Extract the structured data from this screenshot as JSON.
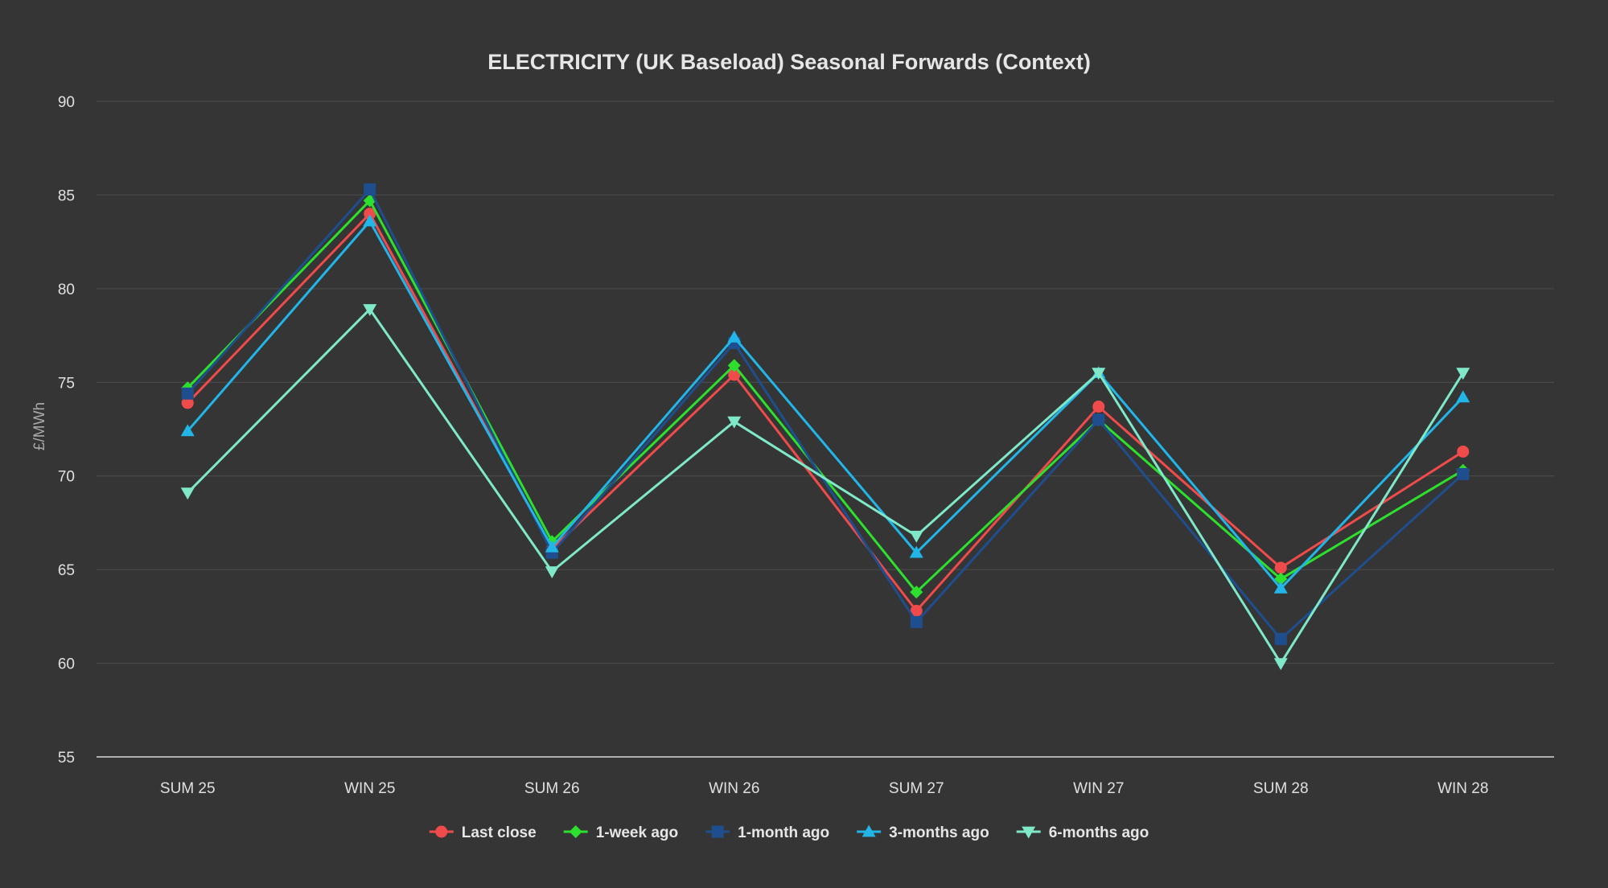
{
  "chart_data": {
    "type": "line",
    "title": "ELECTRICITY (UK Baseload) Seasonal Forwards (Context)",
    "xlabel": "",
    "ylabel": "£/MWh",
    "ylim": [
      55,
      90
    ],
    "yticks": [
      55,
      60,
      65,
      70,
      75,
      80,
      85,
      90
    ],
    "grid": true,
    "legend_position": "bottom-center",
    "categories": [
      "SUM 25",
      "WIN 25",
      "SUM 26",
      "WIN 26",
      "SUM 27",
      "WIN 27",
      "SUM 28",
      "WIN 28"
    ],
    "series": [
      {
        "name": "Last close",
        "color": "#f04b4b",
        "marker": "circle",
        "values": [
          73.9,
          84.0,
          66.1,
          75.4,
          62.8,
          73.7,
          65.1,
          71.3
        ]
      },
      {
        "name": "1-week ago",
        "color": "#2ee02e",
        "marker": "diamond",
        "values": [
          74.7,
          84.7,
          66.5,
          75.9,
          63.8,
          73.0,
          64.5,
          70.3
        ]
      },
      {
        "name": "1-month ago",
        "color": "#1f4e8f",
        "marker": "square",
        "values": [
          74.4,
          85.3,
          65.9,
          77.1,
          62.2,
          73.0,
          61.3,
          70.1
        ]
      },
      {
        "name": "3-months ago",
        "color": "#22b5e8",
        "marker": "triangle-up",
        "values": [
          72.4,
          83.6,
          66.2,
          77.4,
          65.9,
          75.5,
          64.0,
          74.2
        ]
      },
      {
        "name": "6-months ago",
        "color": "#7ee8c8",
        "marker": "triangle-down",
        "values": [
          69.1,
          78.9,
          64.9,
          72.9,
          66.8,
          75.5,
          60.0,
          75.5
        ]
      }
    ]
  }
}
